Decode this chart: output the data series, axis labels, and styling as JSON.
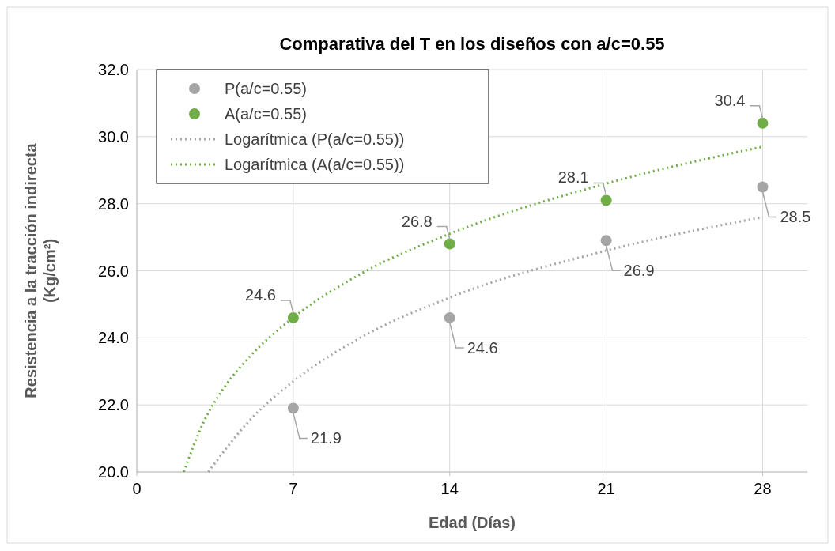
{
  "chart_data": {
    "type": "scatter",
    "title": "Comparativa del T en los diseños con a/c=0.55",
    "xlabel": "Edad (Días)",
    "ylabel": "Resistencia a la tracción indirecta (Kg/cm²)",
    "x": [
      7,
      14,
      21,
      28
    ],
    "xlim": [
      0,
      30
    ],
    "xticks": [
      0,
      7,
      14,
      21,
      28
    ],
    "ylim": [
      20,
      32
    ],
    "yticks": [
      {
        "value": 20,
        "label": "20.0"
      },
      {
        "value": 22,
        "label": "22.0"
      },
      {
        "value": 24,
        "label": "24.0"
      },
      {
        "value": 26,
        "label": "26.0"
      },
      {
        "value": 28,
        "label": "28.0"
      },
      {
        "value": 30,
        "label": "30.0"
      },
      {
        "value": 32,
        "label": "32.0"
      }
    ],
    "grid": true,
    "legend": "top left",
    "marker": "circle",
    "series": [
      {
        "name": "P(a/c=0.55)",
        "color": "#a5a5a5",
        "values": [
          21.9,
          24.6,
          26.9,
          28.5
        ],
        "value_labels": [
          "21.9",
          "24.6",
          "26.9",
          "28.5"
        ]
      },
      {
        "name": "A(a/c=0.55)",
        "color": "#70ad47",
        "values": [
          24.6,
          26.8,
          28.1,
          30.4
        ],
        "value_labels": [
          "24.6",
          "26.8",
          "28.1",
          "30.4"
        ]
      },
      {
        "name": "Logarítmica (P(a/c=0.55))",
        "type": "line",
        "marker": "none",
        "line_style": "dotted",
        "color": "#a5a5a5",
        "x": [
          3.2,
          4,
          5,
          7,
          10,
          14,
          21,
          28
        ],
        "values": [
          20.0,
          20.7,
          21.5,
          22.7,
          24.0,
          25.2,
          26.6,
          27.6
        ]
      },
      {
        "name": "Logarítmica (A(a/c=0.55))",
        "type": "line",
        "marker": "none",
        "line_style": "dotted",
        "color": "#70ad47",
        "x": [
          2.1,
          3,
          4,
          5,
          7,
          10,
          14,
          21,
          28
        ],
        "values": [
          20.0,
          21.5,
          22.6,
          23.4,
          24.6,
          25.9,
          27.1,
          28.6,
          29.7
        ]
      }
    ]
  }
}
